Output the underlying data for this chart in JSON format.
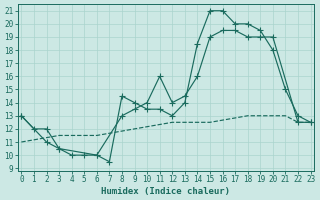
{
  "xlabel": "Humidex (Indice chaleur)",
  "bg_color": "#cce8e4",
  "grid_color": "#aad4ce",
  "line_color": "#1a6b5e",
  "xlim": [
    -0.3,
    23.3
  ],
  "ylim": [
    8.8,
    21.5
  ],
  "xticks": [
    0,
    1,
    2,
    3,
    4,
    5,
    6,
    7,
    8,
    9,
    10,
    11,
    12,
    13,
    14,
    15,
    16,
    17,
    18,
    19,
    20,
    21,
    22,
    23
  ],
  "yticks": [
    9,
    10,
    11,
    12,
    13,
    14,
    15,
    16,
    17,
    18,
    19,
    20,
    21
  ],
  "line1_x": [
    0,
    1,
    2,
    3,
    4,
    5,
    6,
    7,
    8,
    9,
    10,
    11,
    12,
    13,
    14,
    15,
    16,
    17,
    18,
    19,
    20,
    21,
    22,
    23
  ],
  "line1_y": [
    13,
    12,
    12,
    10.5,
    10,
    10,
    10,
    9.5,
    14.5,
    14,
    13.5,
    13.5,
    13,
    14,
    18.5,
    21,
    21,
    20,
    20,
    19.5,
    18,
    15,
    13,
    12.5
  ],
  "line2_x": [
    0,
    2,
    3,
    6,
    8,
    9,
    10,
    11,
    12,
    13,
    14,
    15,
    16,
    17,
    18,
    19,
    20,
    22,
    23
  ],
  "line2_y": [
    13,
    11,
    10.5,
    10,
    13,
    13.5,
    14,
    16,
    14,
    14.5,
    16,
    19,
    19.5,
    19.5,
    19,
    19,
    19,
    12.5,
    12.5
  ],
  "line3_x": [
    0,
    3,
    6,
    9,
    12,
    15,
    18,
    21,
    22,
    23
  ],
  "line3_y": [
    11,
    11.5,
    11.5,
    12,
    12.5,
    12.5,
    13,
    13,
    12.5,
    12.5
  ]
}
